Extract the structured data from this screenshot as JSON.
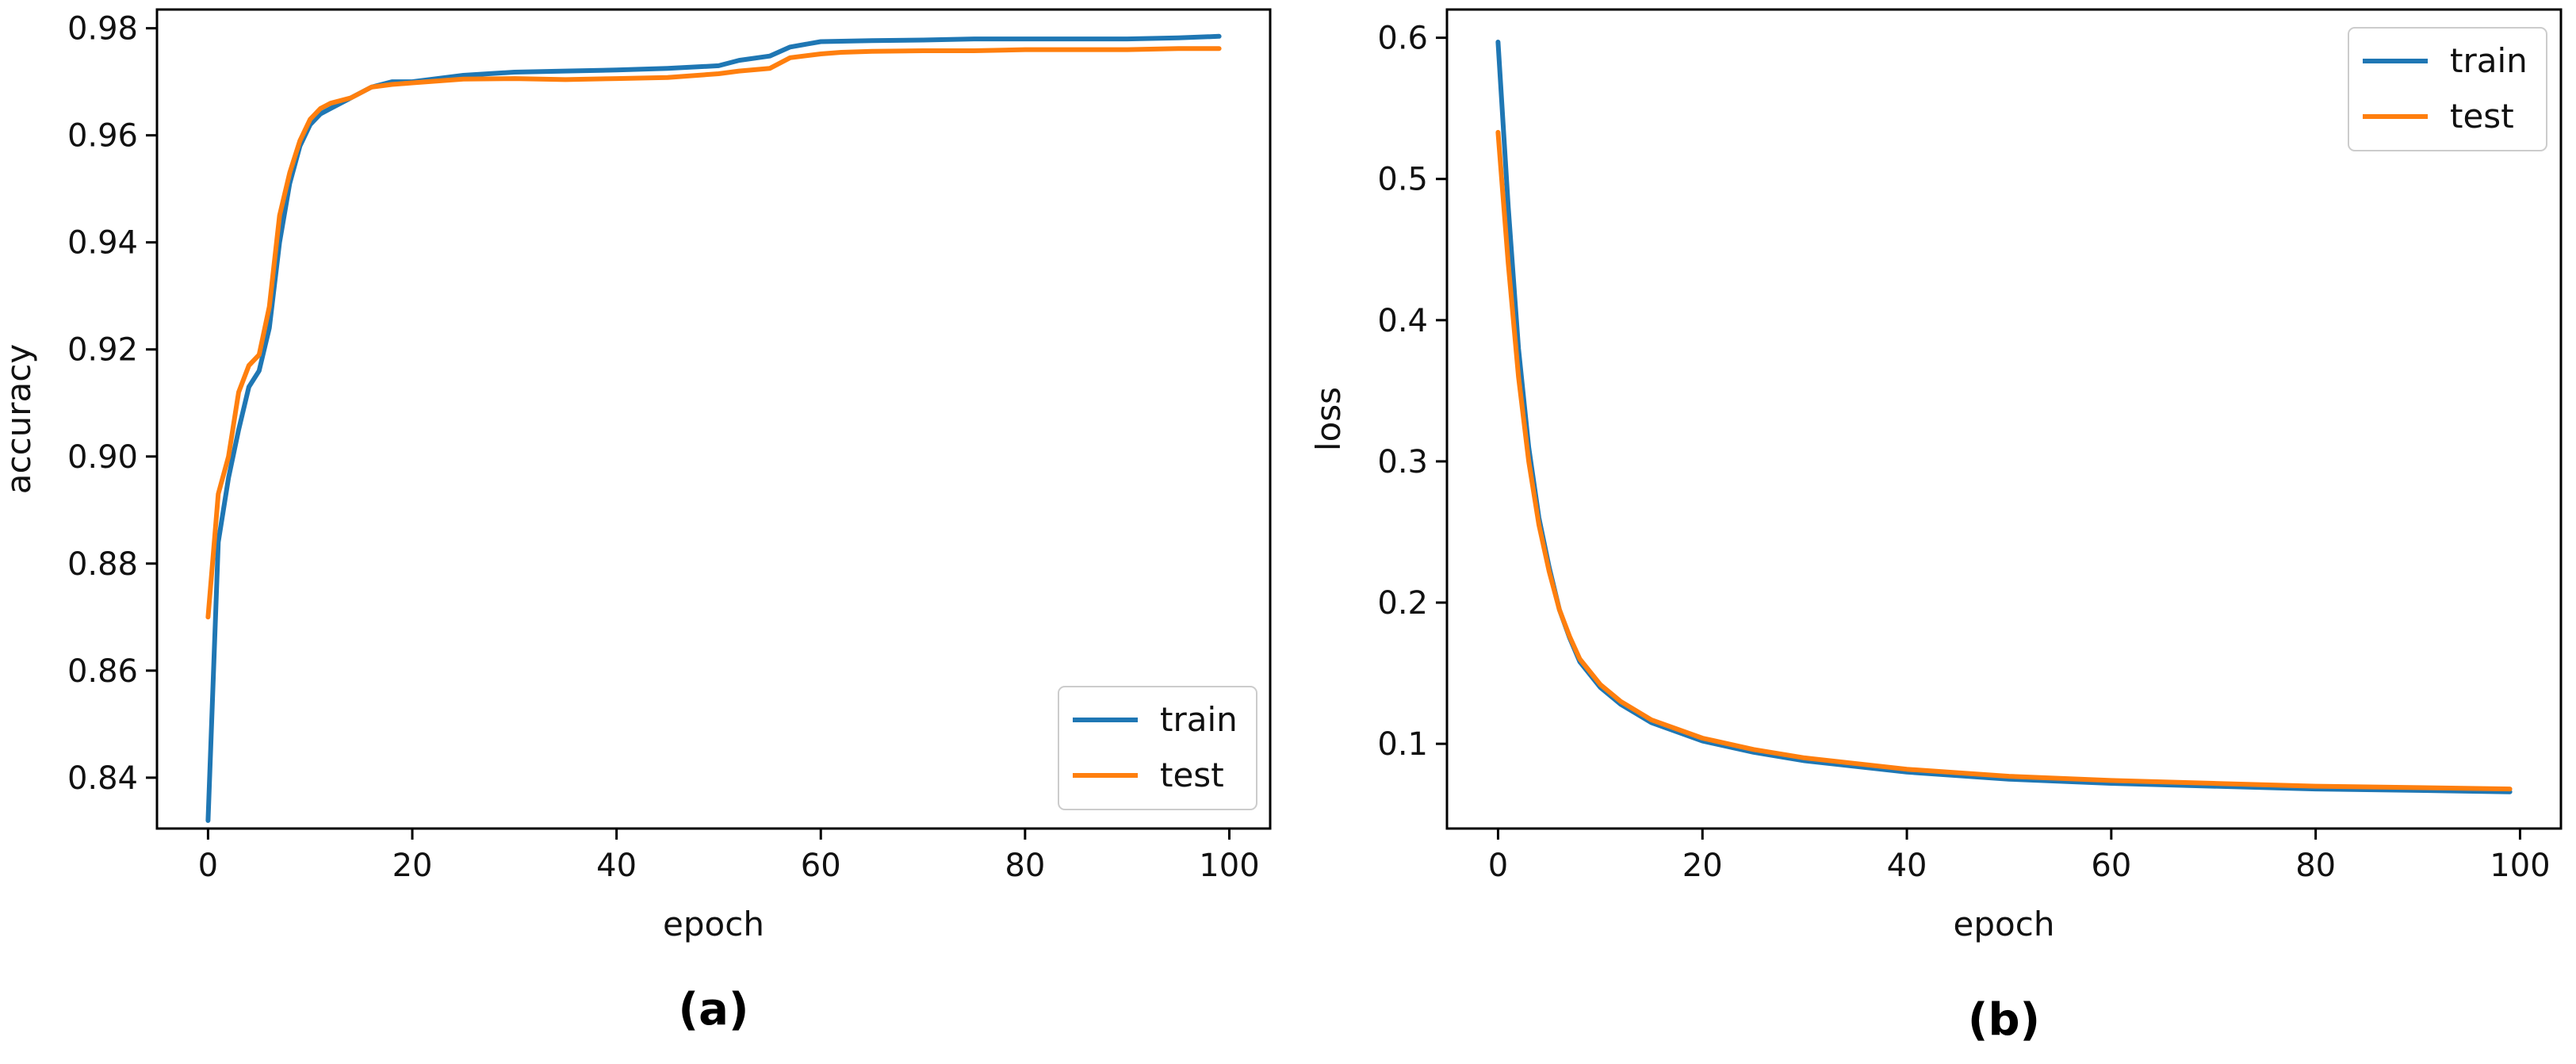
{
  "colors": {
    "train": "#1f77b4",
    "test": "#ff7f0e",
    "axis": "#000000"
  },
  "chart_data": [
    {
      "type": "line",
      "panel_label": "(a)",
      "xlabel": "epoch",
      "ylabel": "accuracy",
      "xlim": [
        -5,
        104
      ],
      "ylim": [
        0.8305,
        0.9835
      ],
      "xticks": [
        0,
        20,
        40,
        60,
        80,
        100
      ],
      "yticks": [
        0.84,
        0.86,
        0.88,
        0.9,
        0.92,
        0.94,
        0.96,
        0.98
      ],
      "ytick_labels": [
        "0.84",
        "0.86",
        "0.88",
        "0.90",
        "0.92",
        "0.94",
        "0.96",
        "0.98"
      ],
      "legend_position": "lower-right",
      "grid": false,
      "series": [
        {
          "name": "train",
          "color": "#1f77b4",
          "x": [
            0,
            1,
            2,
            3,
            4,
            5,
            6,
            7,
            8,
            9,
            10,
            11,
            12,
            14,
            16,
            18,
            20,
            25,
            30,
            35,
            40,
            45,
            50,
            52,
            55,
            57,
            60,
            65,
            70,
            75,
            80,
            85,
            90,
            95,
            99
          ],
          "y": [
            0.832,
            0.884,
            0.896,
            0.905,
            0.913,
            0.916,
            0.924,
            0.94,
            0.951,
            0.958,
            0.962,
            0.964,
            0.965,
            0.967,
            0.969,
            0.97,
            0.97,
            0.9712,
            0.9718,
            0.972,
            0.9722,
            0.9725,
            0.973,
            0.974,
            0.9748,
            0.9765,
            0.9775,
            0.9777,
            0.9778,
            0.978,
            0.978,
            0.978,
            0.978,
            0.9782,
            0.9785
          ]
        },
        {
          "name": "test",
          "color": "#ff7f0e",
          "x": [
            0,
            1,
            2,
            3,
            4,
            5,
            6,
            7,
            8,
            9,
            10,
            11,
            12,
            14,
            16,
            18,
            20,
            25,
            30,
            35,
            40,
            45,
            50,
            52,
            55,
            57,
            60,
            62,
            65,
            70,
            75,
            80,
            85,
            90,
            95,
            99
          ],
          "y": [
            0.87,
            0.893,
            0.9,
            0.912,
            0.917,
            0.919,
            0.928,
            0.945,
            0.953,
            0.959,
            0.963,
            0.965,
            0.966,
            0.967,
            0.969,
            0.9695,
            0.9698,
            0.9705,
            0.9706,
            0.9704,
            0.9706,
            0.9708,
            0.9715,
            0.972,
            0.9725,
            0.9745,
            0.9752,
            0.9755,
            0.9757,
            0.9758,
            0.9758,
            0.976,
            0.976,
            0.976,
            0.9762,
            0.9762
          ]
        }
      ]
    },
    {
      "type": "line",
      "panel_label": "(b)",
      "xlabel": "epoch",
      "ylabel": "loss",
      "xlim": [
        -5,
        104
      ],
      "ylim": [
        0.04,
        0.62
      ],
      "xticks": [
        0,
        20,
        40,
        60,
        80,
        100
      ],
      "yticks": [
        0.1,
        0.2,
        0.3,
        0.4,
        0.5,
        0.6
      ],
      "ytick_labels": [
        "0.1",
        "0.2",
        "0.3",
        "0.4",
        "0.5",
        "0.6"
      ],
      "legend_position": "upper-right",
      "grid": false,
      "series": [
        {
          "name": "train",
          "color": "#1f77b4",
          "x": [
            0,
            1,
            2,
            3,
            4,
            5,
            6,
            7,
            8,
            10,
            12,
            15,
            20,
            25,
            30,
            40,
            50,
            60,
            70,
            80,
            90,
            99
          ],
          "y": [
            0.597,
            0.48,
            0.38,
            0.31,
            0.26,
            0.225,
            0.195,
            0.175,
            0.158,
            0.14,
            0.128,
            0.115,
            0.102,
            0.094,
            0.088,
            0.08,
            0.075,
            0.072,
            0.07,
            0.068,
            0.067,
            0.066
          ]
        },
        {
          "name": "test",
          "color": "#ff7f0e",
          "x": [
            0,
            1,
            2,
            3,
            4,
            5,
            6,
            7,
            8,
            10,
            12,
            15,
            20,
            25,
            30,
            40,
            50,
            60,
            70,
            80,
            90,
            99
          ],
          "y": [
            0.533,
            0.44,
            0.36,
            0.3,
            0.255,
            0.222,
            0.195,
            0.176,
            0.16,
            0.142,
            0.13,
            0.117,
            0.104,
            0.096,
            0.09,
            0.082,
            0.077,
            0.074,
            0.072,
            0.07,
            0.069,
            0.068
          ]
        }
      ]
    }
  ]
}
